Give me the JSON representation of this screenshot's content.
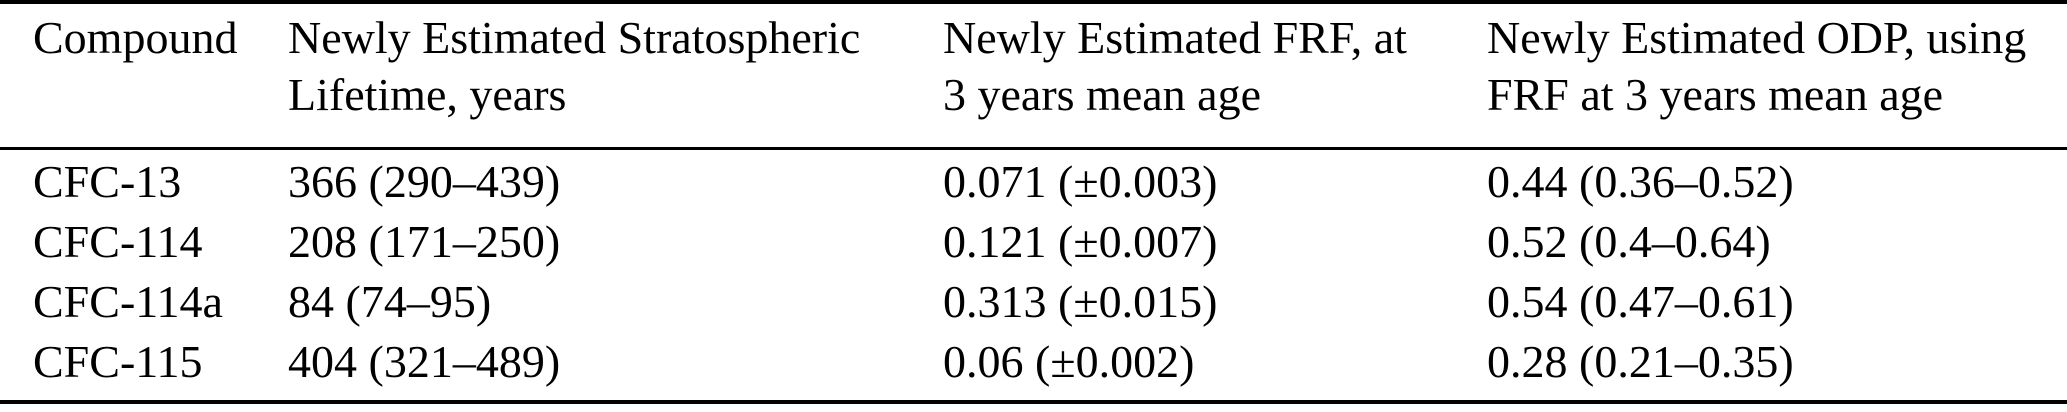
{
  "page": {
    "background": "#ffffff",
    "text_color": "#000000",
    "rule_color": "#000000"
  },
  "table": {
    "columns": [
      {
        "lines": [
          "Compound",
          ""
        ]
      },
      {
        "lines": [
          "Newly Estimated Stratospheric",
          "Lifetime, years"
        ]
      },
      {
        "lines": [
          "Newly Estimated FRF, at",
          "3 years mean age"
        ]
      },
      {
        "lines": [
          "Newly Estimated ODP, using",
          "FRF at 3 years mean age"
        ]
      }
    ],
    "rows": [
      {
        "compound": "CFC-13",
        "lifetime": "366 (290–439)",
        "frf": "0.071 (±0.003)",
        "odp": "0.44 (0.36–0.52)"
      },
      {
        "compound": "CFC-114",
        "lifetime": "208 (171–250)",
        "frf": "0.121 (±0.007)",
        "odp": "0.52 (0.4–0.64)"
      },
      {
        "compound": "CFC-114a",
        "lifetime": "84 (74–95)",
        "frf": "0.313 (±0.015)",
        "odp": "0.54 (0.47–0.61)"
      },
      {
        "compound": "CFC-115",
        "lifetime": "404 (321–489)",
        "frf": "0.06 (±0.002)",
        "odp": "0.28 (0.21–0.35)"
      }
    ]
  }
}
